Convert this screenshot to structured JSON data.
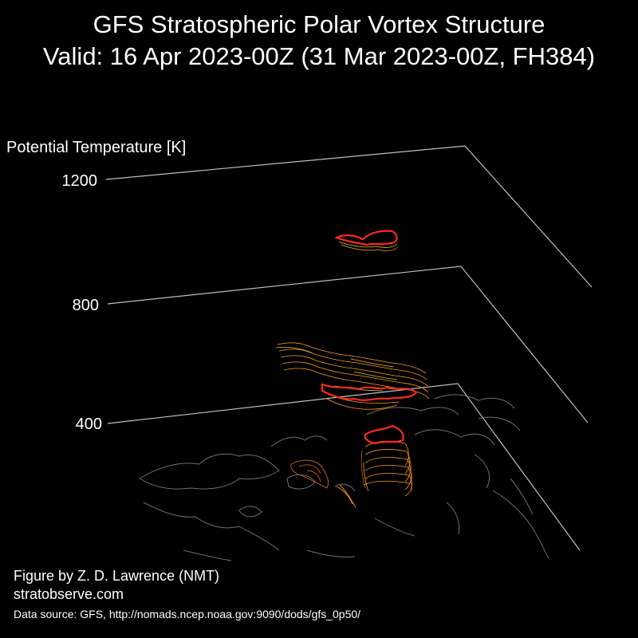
{
  "title_line1": "GFS Stratospheric Polar Vortex Structure",
  "title_line2": "Valid: 16 Apr 2023-00Z  (31 Mar 2023-00Z, FH384)",
  "credit_author": "Figure by Z. D. Lawrence (NMT)",
  "credit_site": "stratobserve.com",
  "data_source": "Data source: GFS, http://nomads.ncep.noaa.gov:9090/dods/gfs_0p50/",
  "chart_data": {
    "type": "3d-contour",
    "title": "GFS Stratospheric Polar Vortex Structure",
    "subtitle": "Valid: 16 Apr 2023-00Z  (31 Mar 2023-00Z, FH384)",
    "zlabel": "Potential Temperature [K]",
    "z_ticks": [
      400,
      800,
      1200
    ],
    "zlim": [
      400,
      1200
    ],
    "grid": true,
    "colors": {
      "background": "#000000",
      "plane_lines": "#bfbfbf",
      "coastlines": "#6f6f6f",
      "vortex_edge": "#ff2a1a",
      "contour_orange": "#ff9a1a",
      "contour_dark_orange": "#c8621a",
      "contour_yellow": "#e6c21a"
    },
    "vortex_levels_K": [
      400,
      850,
      1150
    ]
  }
}
